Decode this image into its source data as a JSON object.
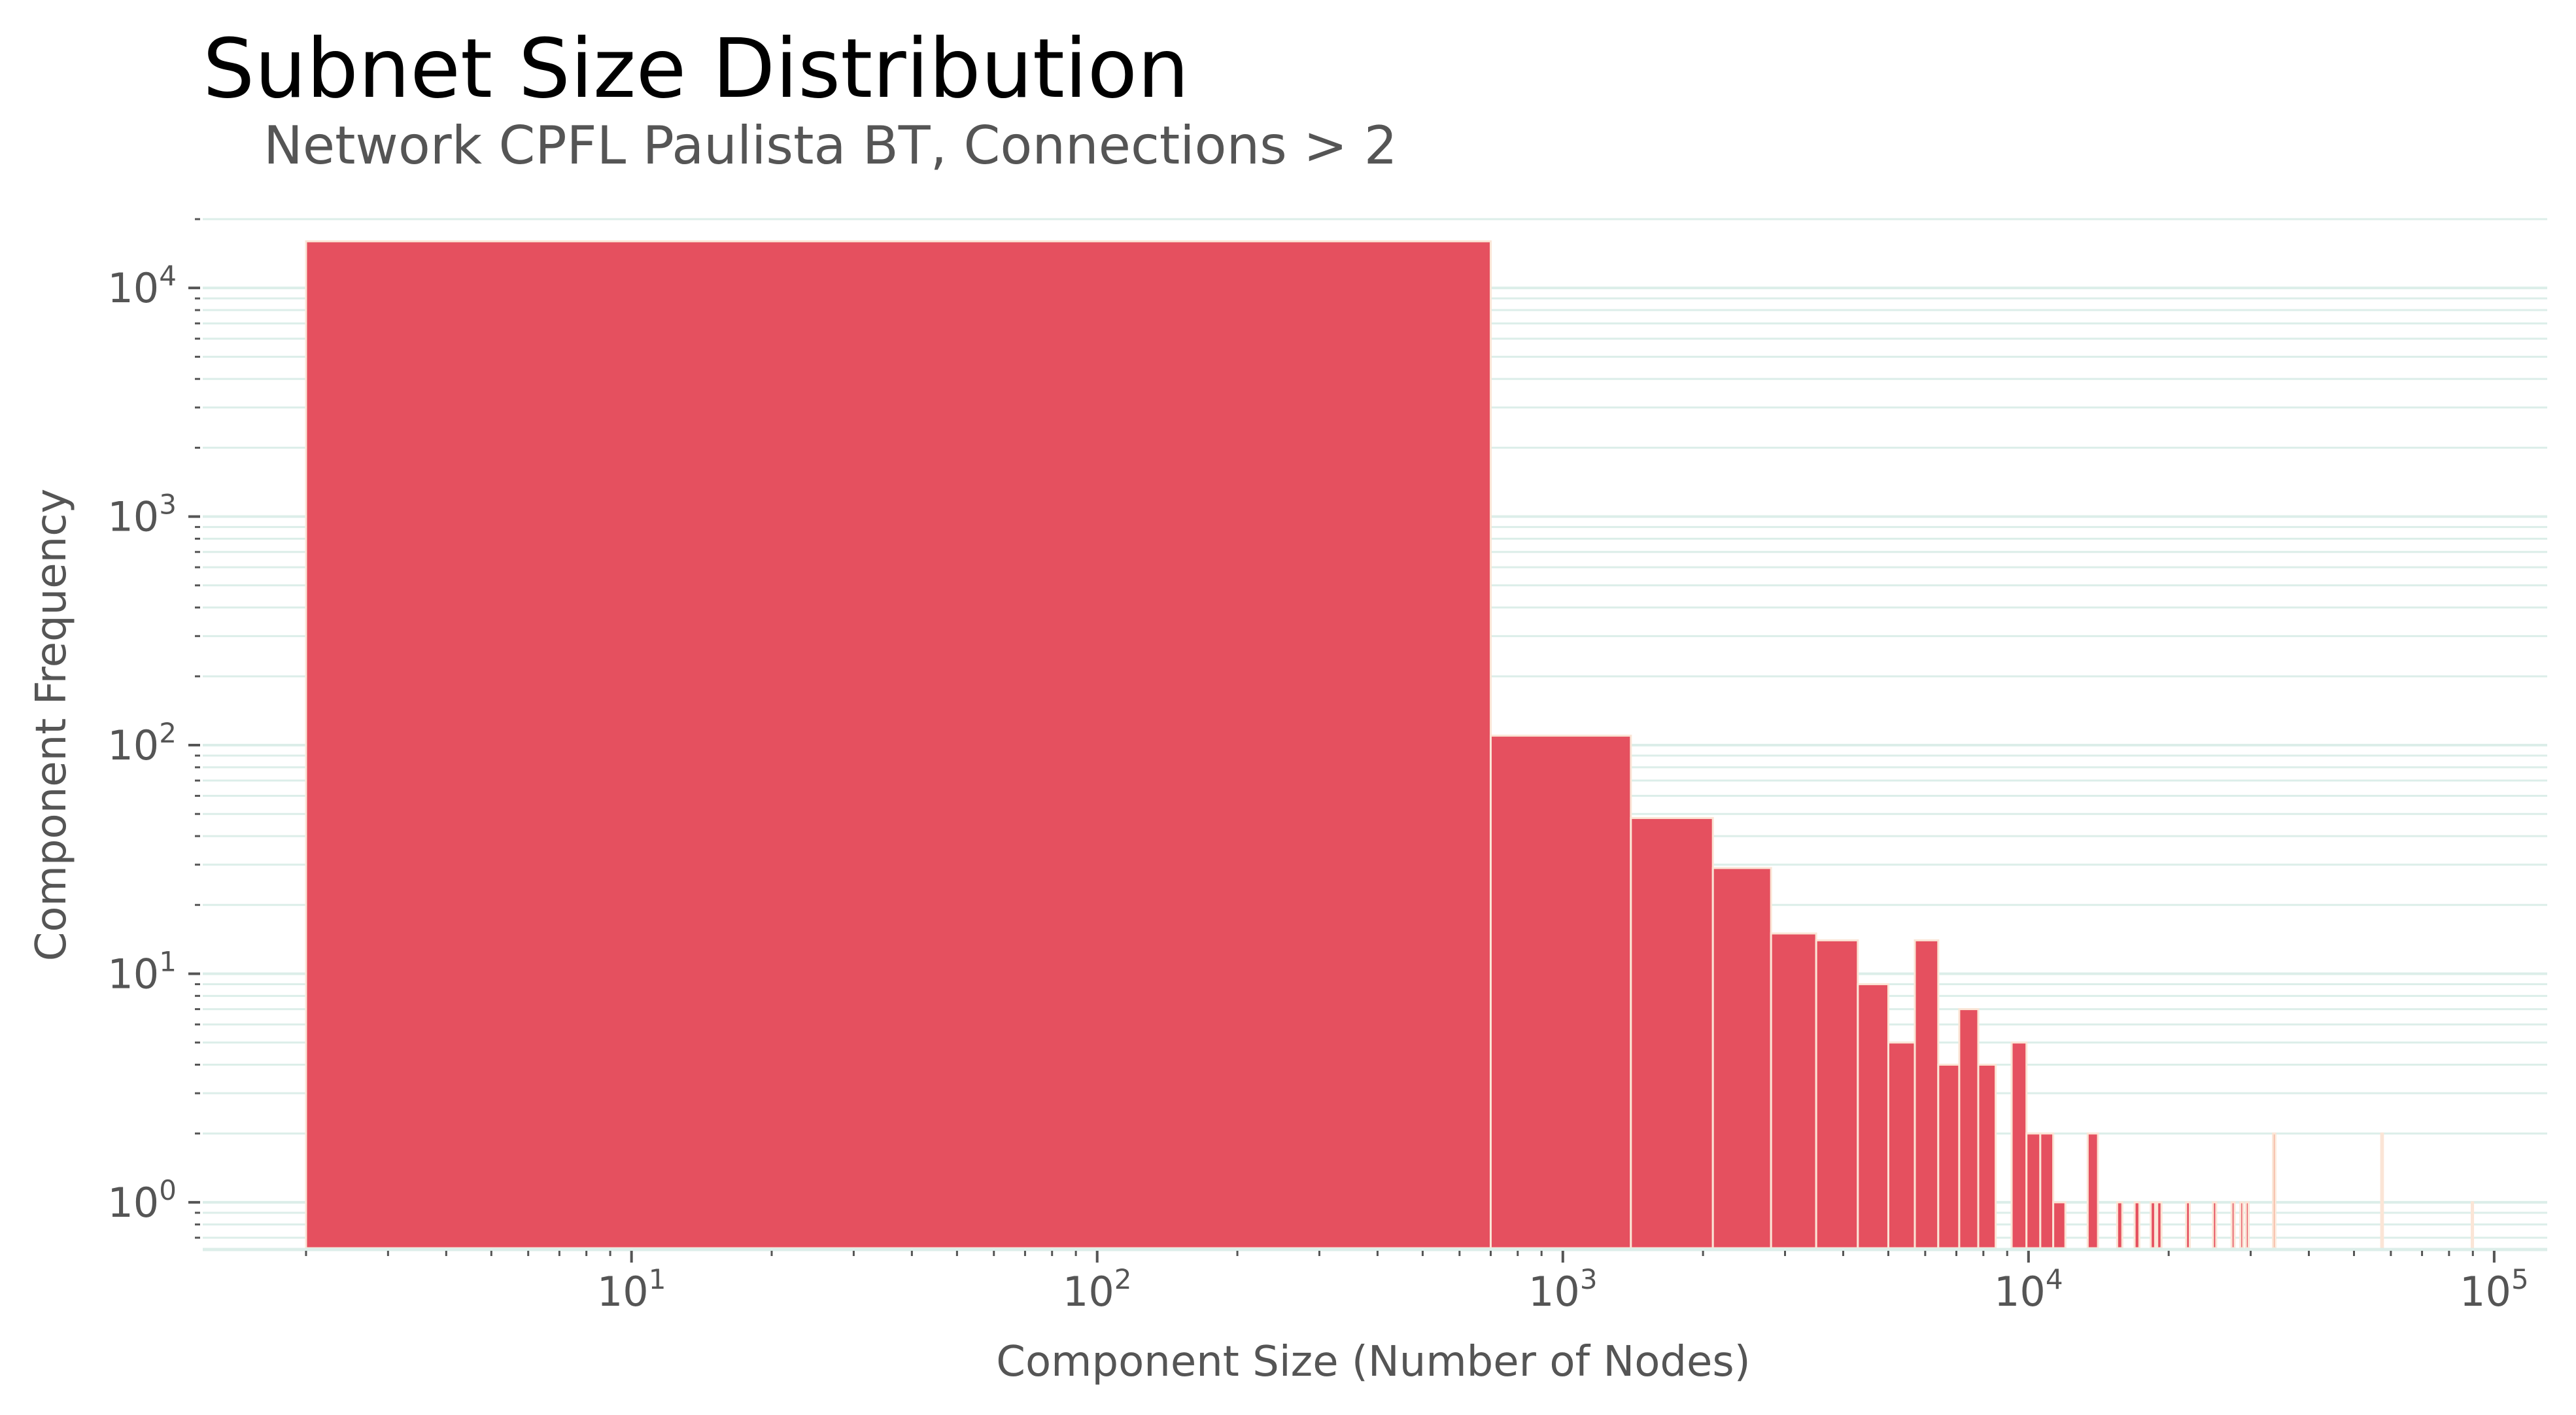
{
  "chart_data": {
    "type": "bar",
    "title": "Subnet Size Distribution",
    "subtitle": "Network CPFL Paulista BT, Connections > 2",
    "xlabel": "Component Size (Number of Nodes)",
    "ylabel": "Component Frequency",
    "x_scale": "log",
    "y_scale": "log",
    "xlim": [
      1.2,
      130000
    ],
    "ylim": [
      0.63,
      20000
    ],
    "x_ticks": [
      {
        "base": "10",
        "exp": "1",
        "value": 10
      },
      {
        "base": "10",
        "exp": "2",
        "value": 100
      },
      {
        "base": "10",
        "exp": "3",
        "value": 1000
      },
      {
        "base": "10",
        "exp": "4",
        "value": 10000
      },
      {
        "base": "10",
        "exp": "5",
        "value": 100000
      }
    ],
    "y_ticks": [
      {
        "base": "10",
        "exp": "0",
        "value": 1
      },
      {
        "base": "10",
        "exp": "1",
        "value": 10
      },
      {
        "base": "10",
        "exp": "2",
        "value": 100
      },
      {
        "base": "10",
        "exp": "3",
        "value": 1000
      },
      {
        "base": "10",
        "exp": "4",
        "value": 10000
      }
    ],
    "grid": "horizontal",
    "colors": {
      "bar_main": "#e5505f",
      "bar_mid": "#ef8a6d",
      "bar_light": "#f7cfa8",
      "bar_edge": "#fbe5d6",
      "grid": "#dceee9",
      "axis": "#555555"
    },
    "bins": [
      {
        "x0": 2,
        "x1": 700,
        "count": 16000,
        "color": "bar_main"
      },
      {
        "x0": 700,
        "x1": 1400,
        "count": 110,
        "color": "bar_main"
      },
      {
        "x0": 1400,
        "x1": 2100,
        "count": 48,
        "color": "bar_main"
      },
      {
        "x0": 2100,
        "x1": 2800,
        "count": 29,
        "color": "bar_main"
      },
      {
        "x0": 2800,
        "x1": 3500,
        "count": 15,
        "color": "bar_main"
      },
      {
        "x0": 3500,
        "x1": 4300,
        "count": 14,
        "color": "bar_main"
      },
      {
        "x0": 4300,
        "x1": 5000,
        "count": 9,
        "color": "bar_main"
      },
      {
        "x0": 5000,
        "x1": 5700,
        "count": 5,
        "color": "bar_main"
      },
      {
        "x0": 5700,
        "x1": 6400,
        "count": 14,
        "color": "bar_main"
      },
      {
        "x0": 6400,
        "x1": 7100,
        "count": 4,
        "color": "bar_main"
      },
      {
        "x0": 7100,
        "x1": 7800,
        "count": 7,
        "color": "bar_main"
      },
      {
        "x0": 7800,
        "x1": 8500,
        "count": 4,
        "color": "bar_main"
      },
      {
        "x0": 9200,
        "x1": 9900,
        "count": 5,
        "color": "bar_main"
      },
      {
        "x0": 9900,
        "x1": 10600,
        "count": 2,
        "color": "bar_main"
      },
      {
        "x0": 10600,
        "x1": 11300,
        "count": 2,
        "color": "bar_main"
      },
      {
        "x0": 11300,
        "x1": 12000,
        "count": 1,
        "color": "bar_main"
      },
      {
        "x0": 13400,
        "x1": 14100,
        "count": 2,
        "color": "bar_main"
      },
      {
        "x0": 15500,
        "x1": 15900,
        "count": 1,
        "color": "bar_main"
      },
      {
        "x0": 16900,
        "x1": 17300,
        "count": 1,
        "color": "bar_main"
      },
      {
        "x0": 18300,
        "x1": 18700,
        "count": 1,
        "color": "bar_main"
      },
      {
        "x0": 18900,
        "x1": 19300,
        "count": 1,
        "color": "bar_main"
      },
      {
        "x0": 21800,
        "x1": 22200,
        "count": 1,
        "color": "bar_main"
      },
      {
        "x0": 24900,
        "x1": 25300,
        "count": 1,
        "color": "bar_main"
      },
      {
        "x0": 27300,
        "x1": 27700,
        "count": 1,
        "color": "bar_main"
      },
      {
        "x0": 28500,
        "x1": 28900,
        "count": 1,
        "color": "bar_main"
      },
      {
        "x0": 29300,
        "x1": 29700,
        "count": 1,
        "color": "bar_main"
      },
      {
        "x0": 33500,
        "x1": 33900,
        "count": 2,
        "color": "bar_mid"
      },
      {
        "x0": 57200,
        "x1": 57700,
        "count": 2,
        "color": "bar_light"
      },
      {
        "x0": 89500,
        "x1": 90000,
        "count": 1,
        "color": "bar_light"
      }
    ]
  }
}
